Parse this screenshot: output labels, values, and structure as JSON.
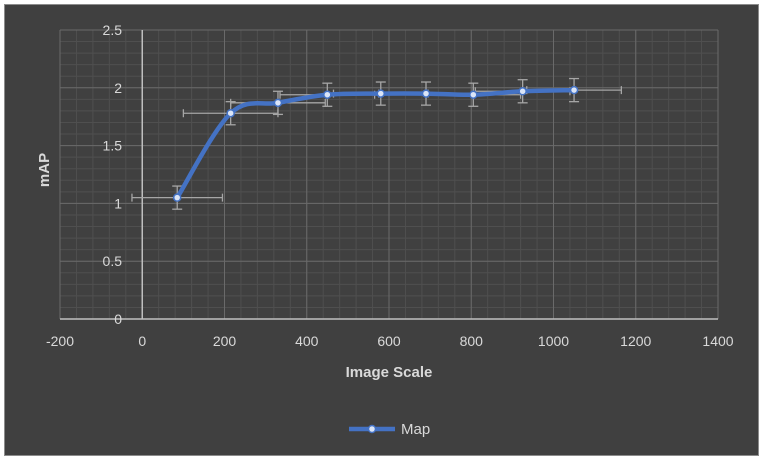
{
  "chart_data": {
    "type": "scatter",
    "title": "",
    "xlabel": "Image Scale",
    "ylabel": "mAP",
    "xlim": [
      -200,
      1400
    ],
    "ylim": [
      0,
      2.5
    ],
    "x_ticks": [
      "-200",
      "0",
      "200",
      "400",
      "600",
      "800",
      "1000",
      "1200",
      "1400"
    ],
    "y_ticks": [
      "0",
      "0.5",
      "1",
      "1.5",
      "2",
      "2.5"
    ],
    "grid": true,
    "legend_position": "bottom",
    "series": [
      {
        "name": "Map",
        "color": "#4472c4",
        "smooth": true,
        "x": [
          85,
          215,
          330,
          450,
          580,
          690,
          805,
          925,
          1050
        ],
        "y": [
          1.05,
          1.78,
          1.87,
          1.94,
          1.95,
          1.95,
          1.94,
          1.97,
          1.98
        ],
        "y_err": [
          0.1,
          0.1,
          0.1,
          0.1,
          0.1,
          0.1,
          0.1,
          0.1,
          0.1
        ],
        "x_err": [
          110,
          115,
          115,
          115,
          115,
          115,
          115,
          115,
          115
        ]
      }
    ]
  }
}
